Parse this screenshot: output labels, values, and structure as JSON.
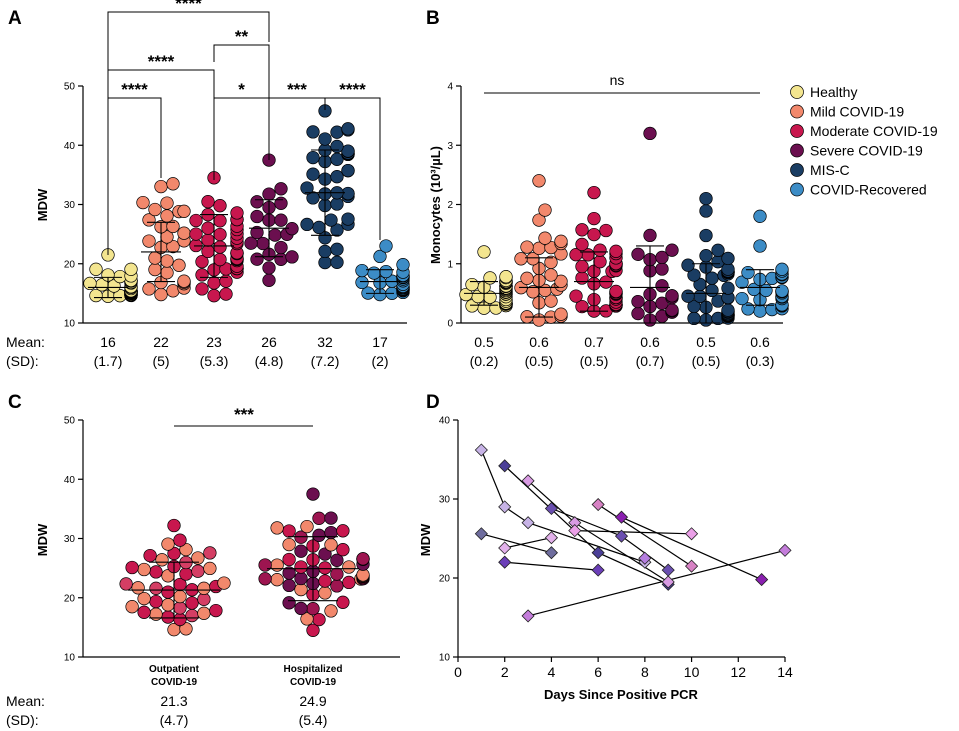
{
  "colors": {
    "Healthy": "#f3e58f",
    "Mild COVID-19": "#f2886c",
    "Moderate COVID-19": "#c8174e",
    "Severe COVID-19": "#6b0f4f",
    "MIS-C": "#1a3d63",
    "COVID-Recovered": "#3c8cc6"
  },
  "labels": {
    "mean": "Mean:",
    "sd": "(SD):"
  },
  "chart_data": [
    {
      "panel": "A",
      "type": "scatter",
      "ylabel": "MDW",
      "ylim": [
        10,
        50
      ],
      "yticks": [
        10,
        20,
        30,
        40,
        50
      ],
      "groups": [
        {
          "name": "Healthy",
          "mean": 16,
          "sd": 1.7,
          "mean_label": "16",
          "sd_label": "(1.7)",
          "n": 40,
          "min": 14.5,
          "max": 21.5
        },
        {
          "name": "Mild COVID-19",
          "mean": 22,
          "sd": 5,
          "mean_label": "22",
          "sd_label": "(5)",
          "n": 30,
          "min": 14.8,
          "max": 33.5
        },
        {
          "name": "Moderate COVID-19",
          "mean": 23,
          "sd": 5.3,
          "mean_label": "23",
          "sd_label": "(5.3)",
          "n": 44,
          "min": 14.6,
          "max": 34.5
        },
        {
          "name": "Severe COVID-19",
          "mean": 26,
          "sd": 4.8,
          "mean_label": "26",
          "sd_label": "(4.8)",
          "n": 22,
          "min": 17.2,
          "max": 37.5
        },
        {
          "name": "MIS-C",
          "mean": 32,
          "sd": 7.2,
          "mean_label": "32",
          "sd_label": "(7.2)",
          "n": 42,
          "min": 20.2,
          "max": 45.8
        },
        {
          "name": "COVID-Recovered",
          "mean": 17,
          "sd": 2,
          "mean_label": "17",
          "sd_label": "(2)",
          "n": 30,
          "min": 14.8,
          "max": 23
        }
      ],
      "comparisons": [
        {
          "from": 0,
          "to": 3,
          "label": "****"
        },
        {
          "from": 2,
          "to": 3,
          "label": "**"
        },
        {
          "from": 0,
          "to": 2,
          "label": "****"
        },
        {
          "from": 0,
          "to": 1,
          "label": "****"
        },
        {
          "from": 2,
          "to": 3,
          "label": "*"
        },
        {
          "from": 3,
          "to": 4,
          "label": "***"
        },
        {
          "from": 4,
          "to": 5,
          "label": "****"
        }
      ]
    },
    {
      "panel": "B",
      "type": "scatter",
      "ylabel": "Monocytes (10³/µL)",
      "ylim": [
        0,
        4
      ],
      "yticks": [
        0,
        1,
        2,
        3,
        4
      ],
      "groups": [
        {
          "name": "Healthy",
          "mean": 0.5,
          "sd": 0.2,
          "mean_label": "0.5",
          "sd_label": "(0.2)",
          "n": 40,
          "min": 0.25,
          "max": 1.2
        },
        {
          "name": "Mild COVID-19",
          "mean": 0.6,
          "sd": 0.5,
          "mean_label": "0.6",
          "sd_label": "(0.5)",
          "n": 30,
          "min": 0.05,
          "max": 2.4
        },
        {
          "name": "Moderate COVID-19",
          "mean": 0.7,
          "sd": 0.5,
          "mean_label": "0.7",
          "sd_label": "(0.5)",
          "n": 44,
          "min": 0.2,
          "max": 2.2
        },
        {
          "name": "Severe COVID-19",
          "mean": 0.6,
          "sd": 0.7,
          "mean_label": "0.6",
          "sd_label": "(0.7)",
          "n": 22,
          "min": 0.05,
          "max": 3.2
        },
        {
          "name": "MIS-C",
          "mean": 0.5,
          "sd": 0.5,
          "mean_label": "0.5",
          "sd_label": "(0.5)",
          "n": 42,
          "min": 0.05,
          "max": 2.1
        },
        {
          "name": "COVID-Recovered",
          "mean": 0.6,
          "sd": 0.3,
          "mean_label": "0.6",
          "sd_label": "(0.3)",
          "n": 30,
          "min": 0.2,
          "max": 1.8
        }
      ],
      "annotation": "ns",
      "legend": [
        "Healthy",
        "Mild COVID-19",
        "Moderate COVID-19",
        "Severe COVID-19",
        "MIS-C",
        "COVID-Recovered"
      ]
    },
    {
      "panel": "C",
      "type": "scatter",
      "ylabel": "MDW",
      "ylim": [
        10,
        50
      ],
      "yticks": [
        10,
        20,
        30,
        40,
        50
      ],
      "groups": [
        {
          "name": "Outpatient COVID-19",
          "label_lines": [
            "Outpatient",
            "COVID-19"
          ],
          "mean": 21.3,
          "sd": 4.7,
          "mean_label": "21.3",
          "sd_label": "(4.7)",
          "n": 44,
          "min": 14.6,
          "max": 32.2
        },
        {
          "name": "Hospitalized COVID-19",
          "label_lines": [
            "Hospitalized",
            "COVID-19"
          ],
          "mean": 24.9,
          "sd": 5.4,
          "mean_label": "24.9",
          "sd_label": "(5.4)",
          "n": 56,
          "min": 14.5,
          "max": 37.5
        }
      ],
      "significance": "***"
    },
    {
      "panel": "D",
      "type": "line",
      "xlabel": "Days Since Positive PCR",
      "ylabel": "MDW",
      "xlim": [
        0,
        14
      ],
      "ylim": [
        10,
        40
      ],
      "xticks": [
        0,
        2,
        4,
        6,
        8,
        10,
        12,
        14
      ],
      "yticks": [
        10,
        20,
        30,
        40
      ],
      "series": [
        {
          "points": [
            [
              1,
              36.2
            ],
            [
              2,
              29
            ],
            [
              3,
              27
            ],
            [
              8,
              22
            ]
          ],
          "color": "#c7b3e6"
        },
        {
          "points": [
            [
              2,
              34.2
            ],
            [
              6,
              23.2
            ],
            [
              9,
              19.2
            ]
          ],
          "color": "#4b3f97"
        },
        {
          "points": [
            [
              3,
              32.3
            ],
            [
              5,
              27
            ],
            [
              9,
              19.5
            ]
          ],
          "color": "#d99be3"
        },
        {
          "points": [
            [
              4,
              28.8
            ],
            [
              7,
              25.3
            ],
            [
              9,
              21
            ]
          ],
          "color": "#6a4fb0"
        },
        {
          "points": [
            [
              1,
              25.6
            ],
            [
              4,
              23.2
            ]
          ],
          "color": "#6f6d9e"
        },
        {
          "points": [
            [
              2,
              22
            ],
            [
              6,
              21
            ]
          ],
          "color": "#6b3fb8"
        },
        {
          "points": [
            [
              2,
              23.8
            ],
            [
              4,
              25.1
            ]
          ],
          "color": "#e2b1ea"
        },
        {
          "points": [
            [
              3,
              15.2
            ],
            [
              14,
              23.5
            ]
          ],
          "color": "#c47ddb"
        },
        {
          "points": [
            [
              5,
              26
            ],
            [
              10,
              25.6
            ]
          ],
          "color": "#eba0e8"
        },
        {
          "points": [
            [
              6,
              29.3
            ],
            [
              10,
              21.5
            ]
          ],
          "color": "#d782c4"
        },
        {
          "points": [
            [
              7,
              27.7
            ],
            [
              13,
              19.8
            ]
          ],
          "color": "#8a1fb0"
        },
        {
          "points": [
            [
              8,
              22.5
            ]
          ],
          "color": "#b57ee0"
        }
      ]
    }
  ]
}
